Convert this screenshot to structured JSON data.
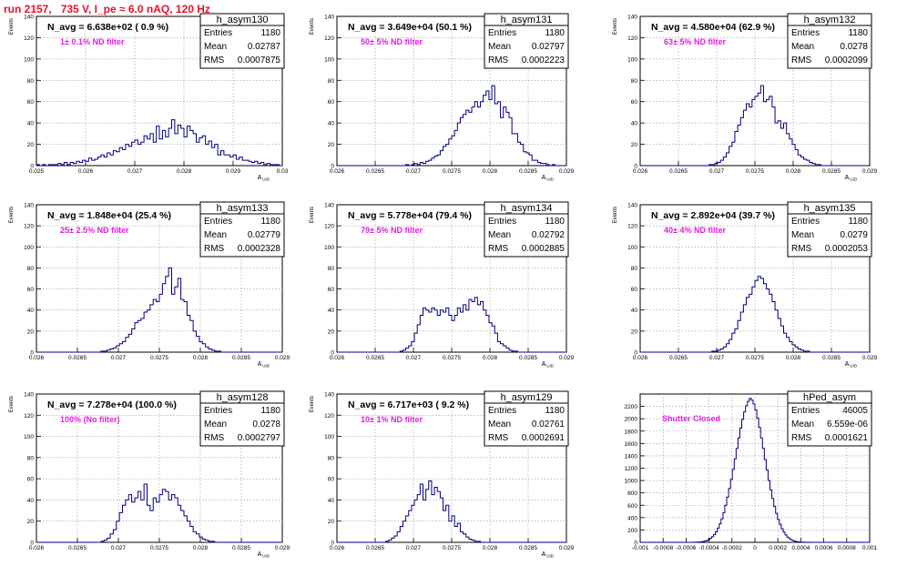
{
  "header": {
    "title": "run 2157,   735 V, I_pe ≈ 6.0 nAQ, 120 Hz"
  },
  "chart_data": [
    {
      "type": "histogram",
      "name": "h_asym130",
      "nlabel": "N_avg = 6.638e+02 ( 0.9 %)",
      "filter": "1± 0.1% ND filter",
      "stats": {
        "Entries": "1180",
        "Mean": "0.02787",
        "RMS": "0.0007875"
      },
      "ylabel": "Events",
      "xlabel": "A",
      "xlabel_sub": "UID",
      "xlim": [
        0.0245,
        0.0305
      ],
      "ylim": [
        0,
        140
      ],
      "xticks": [
        "0.025",
        "0.026",
        "0.027",
        "0.028",
        "0.029",
        "0.03"
      ],
      "yticks": [
        "0",
        "20",
        "40",
        "60",
        "80",
        "100",
        "120",
        "140"
      ],
      "counts": [
        1,
        0,
        1,
        0,
        1,
        1,
        1,
        2,
        1,
        3,
        1,
        3,
        2,
        4,
        3,
        5,
        4,
        7,
        5,
        6,
        8,
        10,
        8,
        12,
        10,
        14,
        13,
        17,
        15,
        20,
        18,
        22,
        24,
        20,
        22,
        28,
        25,
        30,
        22,
        37,
        25,
        33,
        27,
        35,
        43,
        30,
        38,
        35,
        27,
        37,
        33,
        30,
        22,
        26,
        28,
        20,
        23,
        17,
        20,
        10,
        14,
        10,
        10,
        8,
        10,
        6,
        8,
        5,
        5,
        4,
        3,
        4,
        2,
        3,
        1,
        2,
        1,
        1,
        1,
        0
      ]
    },
    {
      "type": "histogram",
      "name": "h_asym131",
      "nlabel": "N_avg = 3.649e+04 (50.1 %)",
      "filter": "50± 5% ND filter",
      "stats": {
        "Entries": "1180",
        "Mean": "0.02797",
        "RMS": "0.0002223"
      },
      "ylabel": "Events",
      "xlabel": "A",
      "xlabel_sub": "UID",
      "xlim": [
        0.026,
        0.029
      ],
      "ylim": [
        0,
        140
      ],
      "xticks": [
        "0.026",
        "0.0265",
        "0.027",
        "0.0275",
        "0.028",
        "0.0285",
        "0.029"
      ],
      "yticks": [
        "0",
        "20",
        "40",
        "60",
        "80",
        "100",
        "120",
        "140"
      ],
      "counts": [
        0,
        0,
        0,
        0,
        0,
        0,
        0,
        0,
        0,
        0,
        0,
        0,
        0,
        0,
        0,
        0,
        0,
        0,
        0,
        0,
        0,
        0,
        0,
        0,
        1,
        0,
        1,
        2,
        1,
        3,
        2,
        4,
        5,
        7,
        9,
        10,
        14,
        18,
        20,
        25,
        28,
        33,
        40,
        45,
        48,
        52,
        50,
        55,
        60,
        55,
        60,
        66,
        70,
        62,
        75,
        58,
        60,
        45,
        55,
        50,
        45,
        30,
        30,
        22,
        20,
        13,
        12,
        10,
        5,
        5,
        3,
        2,
        2,
        1,
        0,
        1,
        0,
        0,
        0,
        0
      ]
    },
    {
      "type": "histogram",
      "name": "h_asym132",
      "nlabel": "N_avg = 4.580e+04 (62.9 %)",
      "filter": "63± 5% ND filter",
      "stats": {
        "Entries": "1180",
        "Mean": "0.0278",
        "RMS": "0.0002099"
      },
      "ylabel": "Events",
      "xlabel": "A",
      "xlabel_sub": "UID",
      "xlim": [
        0.026,
        0.029
      ],
      "ylim": [
        0,
        140
      ],
      "xticks": [
        "0.026",
        "0.0265",
        "0.027",
        "0.0275",
        "0.028",
        "0.0285",
        "0.029"
      ],
      "yticks": [
        "0",
        "20",
        "40",
        "60",
        "80",
        "100",
        "120",
        "140"
      ],
      "counts": [
        0,
        0,
        0,
        0,
        0,
        0,
        0,
        0,
        0,
        0,
        0,
        0,
        0,
        0,
        0,
        0,
        0,
        0,
        0,
        0,
        0,
        0,
        0,
        0,
        1,
        1,
        2,
        3,
        5,
        8,
        12,
        18,
        22,
        32,
        38,
        45,
        52,
        58,
        55,
        62,
        65,
        68,
        75,
        60,
        62,
        65,
        55,
        40,
        42,
        35,
        40,
        30,
        25,
        20,
        15,
        10,
        8,
        6,
        5,
        3,
        2,
        1,
        1,
        0,
        0,
        0,
        0,
        0,
        0,
        0,
        0,
        0,
        0,
        0,
        0,
        0,
        0,
        0,
        0,
        0
      ]
    },
    {
      "type": "histogram",
      "name": "h_asym133",
      "nlabel": "N_avg = 1.848e+04 (25.4 %)",
      "filter": "25± 2.5% ND filter",
      "stats": {
        "Entries": "1180",
        "Mean": "0.02779",
        "RMS": "0.0002328"
      },
      "ylabel": "Events",
      "xlabel": "A",
      "xlabel_sub": "UID",
      "xlim": [
        0.026,
        0.029
      ],
      "ylim": [
        0,
        140
      ],
      "xticks": [
        "0.026",
        "0.0265",
        "0.027",
        "0.0275",
        "0.028",
        "0.0285",
        "0.029"
      ],
      "yticks": [
        "0",
        "20",
        "40",
        "60",
        "80",
        "100",
        "120",
        "140"
      ],
      "counts": [
        0,
        0,
        0,
        0,
        0,
        0,
        0,
        0,
        0,
        0,
        0,
        0,
        0,
        0,
        0,
        0,
        0,
        0,
        0,
        0,
        0,
        1,
        1,
        2,
        3,
        4,
        6,
        8,
        10,
        14,
        17,
        22,
        28,
        30,
        32,
        38,
        40,
        45,
        50,
        48,
        55,
        65,
        72,
        80,
        55,
        62,
        70,
        50,
        48,
        35,
        30,
        20,
        15,
        10,
        8,
        5,
        3,
        2,
        1,
        1,
        0,
        0,
        0,
        0,
        0,
        0,
        0,
        0,
        0,
        0,
        0,
        0,
        0,
        0,
        0,
        0,
        0,
        0,
        0,
        0
      ]
    },
    {
      "type": "histogram",
      "name": "h_asym134",
      "nlabel": "N_avg = 5.778e+04 (79.4 %)",
      "filter": "79± 5% ND filter",
      "stats": {
        "Entries": "1180",
        "Mean": "0.02792",
        "RMS": "0.0002885"
      },
      "ylabel": "Events",
      "xlabel": "A",
      "xlabel_sub": "UID",
      "xlim": [
        0.026,
        0.029
      ],
      "ylim": [
        0,
        140
      ],
      "xticks": [
        "0.026",
        "0.0265",
        "0.027",
        "0.0275",
        "0.028",
        "0.0285",
        "0.029"
      ],
      "yticks": [
        "0",
        "20",
        "40",
        "60",
        "80",
        "100",
        "120",
        "140"
      ],
      "counts": [
        0,
        0,
        0,
        0,
        0,
        0,
        0,
        0,
        0,
        0,
        0,
        0,
        0,
        0,
        0,
        0,
        0,
        0,
        0,
        0,
        0,
        0,
        1,
        2,
        4,
        6,
        10,
        18,
        26,
        35,
        42,
        40,
        38,
        42,
        40,
        35,
        40,
        38,
        42,
        35,
        30,
        35,
        42,
        38,
        45,
        40,
        50,
        48,
        52,
        45,
        48,
        40,
        35,
        28,
        25,
        18,
        10,
        8,
        6,
        4,
        2,
        1,
        1,
        0,
        0,
        0,
        0,
        0,
        0,
        0,
        0,
        0,
        0,
        0,
        0,
        0,
        0,
        0,
        0,
        0
      ]
    },
    {
      "type": "histogram",
      "name": "h_asym135",
      "nlabel": "N_avg = 2.892e+04 (39.7 %)",
      "filter": "40± 4% ND filter",
      "stats": {
        "Entries": "1180",
        "Mean": "0.0279",
        "RMS": "0.0002053"
      },
      "ylabel": "Events",
      "xlabel": "A",
      "xlabel_sub": "UID",
      "xlim": [
        0.026,
        0.029
      ],
      "ylim": [
        0,
        140
      ],
      "xticks": [
        "0.026",
        "0.0265",
        "0.027",
        "0.0275",
        "0.028",
        "0.0285",
        "0.029"
      ],
      "yticks": [
        "0",
        "20",
        "40",
        "60",
        "80",
        "100",
        "120",
        "140"
      ],
      "counts": [
        0,
        0,
        0,
        0,
        0,
        0,
        0,
        0,
        0,
        0,
        0,
        0,
        0,
        0,
        0,
        0,
        0,
        0,
        0,
        0,
        0,
        0,
        0,
        0,
        0,
        1,
        1,
        2,
        3,
        5,
        8,
        12,
        18,
        22,
        30,
        38,
        45,
        52,
        55,
        62,
        68,
        72,
        70,
        65,
        60,
        55,
        48,
        40,
        32,
        25,
        18,
        14,
        10,
        7,
        5,
        3,
        2,
        1,
        1,
        0,
        0,
        0,
        0,
        0,
        0,
        0,
        0,
        0,
        0,
        0,
        0,
        0,
        0,
        0,
        0,
        0,
        0,
        0,
        0,
        0
      ]
    },
    {
      "type": "histogram",
      "name": "h_asym128",
      "nlabel": "N_avg = 7.278e+04 (100.0 %)",
      "filter": "100% (No filter)",
      "stats": {
        "Entries": "1180",
        "Mean": "0.0278",
        "RMS": "0.0002797"
      },
      "ylabel": "Events",
      "xlabel": "A",
      "xlabel_sub": "UID",
      "xlim": [
        0.026,
        0.029
      ],
      "ylim": [
        0,
        140
      ],
      "xticks": [
        "0.026",
        "0.0265",
        "0.027",
        "0.0275",
        "0.028",
        "0.0285",
        "0.029"
      ],
      "yticks": [
        "0",
        "20",
        "40",
        "60",
        "80",
        "100",
        "120",
        "140"
      ],
      "counts": [
        0,
        0,
        0,
        0,
        0,
        0,
        0,
        0,
        0,
        0,
        0,
        0,
        0,
        0,
        0,
        0,
        0,
        0,
        0,
        0,
        0,
        1,
        2,
        4,
        8,
        12,
        20,
        28,
        35,
        40,
        45,
        38,
        42,
        48,
        40,
        55,
        35,
        30,
        42,
        38,
        45,
        50,
        48,
        40,
        45,
        42,
        35,
        30,
        25,
        20,
        15,
        10,
        8,
        5,
        3,
        2,
        1,
        1,
        0,
        0,
        0,
        0,
        0,
        0,
        0,
        0,
        0,
        0,
        0,
        0,
        0,
        0,
        0,
        0,
        0,
        0,
        0,
        0,
        0,
        0
      ]
    },
    {
      "type": "histogram",
      "name": "h_asym129",
      "nlabel": "N_avg = 6.717e+03 ( 9.2 %)",
      "filter": "10± 1% ND filter",
      "stats": {
        "Entries": "1180",
        "Mean": "0.02761",
        "RMS": "0.0002691"
      },
      "ylabel": "Events",
      "xlabel": "A",
      "xlabel_sub": "UID",
      "xlim": [
        0.026,
        0.029
      ],
      "ylim": [
        0,
        140
      ],
      "xticks": [
        "0.026",
        "0.0265",
        "0.027",
        "0.0275",
        "0.028",
        "0.0285",
        "0.029"
      ],
      "yticks": [
        "0",
        "20",
        "40",
        "60",
        "80",
        "100",
        "120",
        "140"
      ],
      "counts": [
        0,
        0,
        0,
        0,
        0,
        0,
        0,
        0,
        0,
        0,
        0,
        0,
        0,
        0,
        0,
        0,
        0,
        1,
        2,
        4,
        6,
        10,
        15,
        20,
        25,
        30,
        35,
        40,
        45,
        55,
        40,
        50,
        58,
        45,
        52,
        48,
        42,
        30,
        35,
        20,
        25,
        15,
        18,
        10,
        8,
        5,
        3,
        2,
        1,
        1,
        0,
        0,
        0,
        0,
        0,
        0,
        0,
        0,
        0,
        0,
        0,
        0,
        0,
        0,
        0,
        0,
        0,
        0,
        0,
        0,
        0,
        0,
        0,
        0,
        0,
        0,
        0,
        0,
        0,
        0
      ]
    },
    {
      "type": "histogram",
      "name": "hPed_asym",
      "nlabel": "",
      "filter": "Shutter Closed",
      "stats": {
        "Entries": "46005",
        "Mean": "6.559e-06",
        "RMS": "0.0001621"
      },
      "ylabel": "",
      "xlabel": "",
      "xlabel_sub": "",
      "xlim": [
        -0.001,
        0.001
      ],
      "ylim": [
        0,
        2400
      ],
      "xticks": [
        "-0.001",
        "-0.0008",
        "-0.0006",
        "-0.0004",
        "-0.0002",
        "0",
        "0.0002",
        "0.0004",
        "0.0006",
        "0.0008",
        "0.001"
      ],
      "yticks": [
        "0",
        "200",
        "400",
        "600",
        "800",
        "1000",
        "1200",
        "1400",
        "1600",
        "1800",
        "2000",
        "2200"
      ],
      "counts": [
        0,
        0,
        0,
        0,
        0,
        0,
        0,
        0,
        0,
        0,
        0,
        0,
        0,
        0,
        0,
        0,
        0,
        0,
        0,
        0,
        0,
        0,
        0,
        0,
        0,
        0,
        0,
        0,
        1,
        2,
        3,
        5,
        8,
        12,
        20,
        30,
        45,
        65,
        90,
        125,
        170,
        230,
        300,
        380,
        480,
        600,
        730,
        870,
        1020,
        1180,
        1350,
        1520,
        1690,
        1850,
        1990,
        2110,
        2210,
        2280,
        2330,
        2300,
        2240,
        2140,
        2010,
        1860,
        1690,
        1520,
        1340,
        1170,
        1000,
        850,
        710,
        580,
        470,
        370,
        290,
        220,
        165,
        120,
        85,
        60,
        40,
        27,
        17,
        11,
        7,
        4,
        3,
        2,
        1,
        1,
        0,
        0,
        0,
        0,
        0,
        0,
        0,
        0,
        0,
        0,
        0,
        0,
        0,
        0,
        0,
        0,
        0,
        0,
        0,
        0,
        0,
        0,
        0,
        0,
        0,
        0,
        0,
        0,
        0,
        0,
        0,
        0
      ]
    }
  ],
  "labels": {
    "entries": "Entries",
    "mean": "Mean",
    "rms": "RMS"
  },
  "colors": {
    "line": "#000080",
    "filter": "#e020e0",
    "title": "#e8112d",
    "grid": "#999999"
  }
}
